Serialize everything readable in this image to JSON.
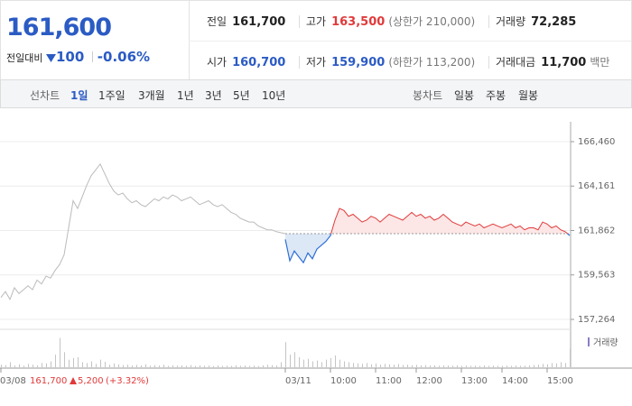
{
  "header": {
    "price": "161,600",
    "change_label": "전일대비",
    "change": "100",
    "change_rate": "-0.06%",
    "stats": [
      {
        "label": "전일",
        "value": "161,700"
      },
      {
        "label": "고가",
        "value": "163,500",
        "note": "(상한가 210,000)"
      },
      {
        "label": "거래량",
        "value": "72,285"
      },
      {
        "label": "시가",
        "value": "160,700"
      },
      {
        "label": "저가",
        "value": "159,900",
        "note": "(하한가 113,200)"
      },
      {
        "label": "거래대금",
        "value": "11,700",
        "note": "백만"
      }
    ]
  },
  "tabs": {
    "line_label": "선차트",
    "line": [
      "1일",
      "1주일",
      "3개월",
      "1년",
      "3년",
      "5년",
      "10년"
    ],
    "candle_label": "봉차트",
    "candle": [
      "일봉",
      "주봉",
      "월봉"
    ]
  },
  "footer": {
    "close": "161,700",
    "change": "5,200",
    "rate": "(+3.32%)"
  },
  "chart_data": {
    "type": "line",
    "categories": [
      "03/08",
      null,
      null,
      null,
      null,
      null,
      null,
      null,
      null,
      null,
      null,
      null,
      null,
      null,
      null,
      null,
      null,
      null,
      null,
      null,
      null,
      null,
      null,
      null,
      null,
      null,
      null,
      null,
      null,
      null,
      null,
      null,
      null,
      null,
      null,
      null,
      null,
      null,
      null,
      null,
      null,
      null,
      null,
      null,
      null,
      null,
      null,
      null,
      null,
      null,
      null,
      null,
      null,
      null,
      null,
      null,
      null,
      null,
      null,
      null,
      null,
      null,
      null,
      "03/11",
      null,
      null,
      null,
      null,
      null,
      null,
      null,
      null,
      null,
      "10:00",
      null,
      null,
      null,
      null,
      null,
      null,
      null,
      null,
      null,
      "11:00",
      null,
      null,
      null,
      null,
      null,
      null,
      null,
      null,
      "12:00",
      null,
      null,
      null,
      null,
      null,
      null,
      null,
      null,
      null,
      "13:00",
      null,
      null,
      null,
      null,
      null,
      null,
      null,
      null,
      "14:00",
      null,
      null,
      null,
      null,
      null,
      null,
      null,
      null,
      null,
      "15:00",
      null,
      null,
      null,
      null,
      null
    ],
    "ylim": [
      156750,
      167020
    ],
    "yticks": [
      {
        "value": 166460,
        "label": "166,460"
      },
      {
        "value": 164161,
        "label": "164,161"
      },
      {
        "value": 161862,
        "label": "161,862"
      },
      {
        "value": 159563,
        "label": "159,563"
      },
      {
        "value": 157264,
        "label": "157,264"
      }
    ],
    "y2lim": [
      0,
      4000
    ],
    "baseline": 161700,
    "grid": true,
    "series": [
      {
        "color": "#bbbbbb",
        "values": [
          158400,
          158700,
          158300,
          158900,
          158600,
          158800,
          159000,
          158800,
          159300,
          159100,
          159500,
          159400,
          159800,
          160100,
          160600,
          162000,
          163400,
          163000,
          163600,
          164200,
          164700,
          165000,
          165300,
          164800,
          164300,
          163900,
          163700,
          163800,
          163500,
          163300,
          163400,
          163200,
          163100,
          163300,
          163500,
          163400,
          163600,
          163500,
          163700,
          163600,
          163400,
          163500,
          163600,
          163400,
          163200,
          163300,
          163400,
          163200,
          163100,
          163200,
          163000,
          162800,
          162700,
          162500,
          162400,
          162300,
          162300,
          162100,
          162000,
          161900,
          161900,
          161800,
          161750,
          161700,
          null,
          null,
          null,
          null,
          null,
          null,
          null,
          null,
          null,
          null,
          null,
          null,
          null,
          null,
          null,
          null,
          null,
          null,
          null,
          null,
          null,
          null,
          null,
          null,
          null,
          null,
          null,
          null,
          null,
          null,
          null,
          null,
          null,
          null,
          null,
          null,
          null,
          null,
          null,
          null,
          null,
          null,
          null,
          null,
          null,
          null,
          null,
          null,
          null,
          null,
          null,
          null,
          null,
          null,
          null,
          null,
          null,
          null,
          null,
          null,
          null,
          null,
          null
        ]
      },
      {
        "color": "#e03a3a",
        "down_color": "#2f6fd8",
        "fill": "#fce6e6",
        "down_fill": "#dde8f7",
        "values": [
          null,
          null,
          null,
          null,
          null,
          null,
          null,
          null,
          null,
          null,
          null,
          null,
          null,
          null,
          null,
          null,
          null,
          null,
          null,
          null,
          null,
          null,
          null,
          null,
          null,
          null,
          null,
          null,
          null,
          null,
          null,
          null,
          null,
          null,
          null,
          null,
          null,
          null,
          null,
          null,
          null,
          null,
          null,
          null,
          null,
          null,
          null,
          null,
          null,
          null,
          null,
          null,
          null,
          null,
          null,
          null,
          null,
          null,
          null,
          null,
          null,
          null,
          null,
          161400,
          160300,
          160800,
          160500,
          160200,
          160700,
          160400,
          160900,
          161100,
          161300,
          161600,
          162400,
          163000,
          162900,
          162600,
          162700,
          162500,
          162300,
          162400,
          162600,
          162500,
          162300,
          162500,
          162700,
          162600,
          162500,
          162400,
          162600,
          162800,
          162600,
          162700,
          162500,
          162600,
          162400,
          162500,
          162700,
          162500,
          162300,
          162200,
          162100,
          162300,
          162200,
          162100,
          162200,
          162000,
          162100,
          162200,
          162100,
          162000,
          162100,
          162200,
          162000,
          162100,
          161900,
          162000,
          162000,
          161900,
          162300,
          162200,
          162000,
          162100,
          161900,
          161800,
          161600
        ]
      },
      {
        "name": "거래량",
        "axis": "y2",
        "color": "#c4c4c4",
        "values": [
          300,
          250,
          600,
          200,
          350,
          180,
          400,
          300,
          220,
          500,
          450,
          700,
          1500,
          3500,
          1800,
          900,
          1100,
          1200,
          600,
          500,
          700,
          400,
          900,
          650,
          300,
          450,
          350,
          250,
          300,
          200,
          280,
          220,
          350,
          180,
          260,
          200,
          300,
          150,
          240,
          190,
          220,
          170,
          260,
          150,
          230,
          180,
          200,
          140,
          210,
          160,
          190,
          150,
          230,
          170,
          200,
          160,
          180,
          140,
          220,
          300,
          250,
          200,
          600,
          3000,
          1500,
          1800,
          1200,
          900,
          1000,
          700,
          800,
          600,
          900,
          1100,
          1400,
          900,
          700,
          600,
          500,
          450,
          400,
          500,
          350,
          450,
          300,
          400,
          350,
          300,
          380,
          260,
          300,
          240,
          280,
          220,
          260,
          200,
          240,
          180,
          220,
          200,
          180,
          220,
          160,
          200,
          170,
          190,
          150,
          210,
          160,
          180,
          170,
          150,
          190,
          160,
          200,
          170,
          180,
          220,
          260,
          300,
          400,
          350,
          500,
          450,
          600,
          500,
          2200
        ]
      }
    ]
  }
}
